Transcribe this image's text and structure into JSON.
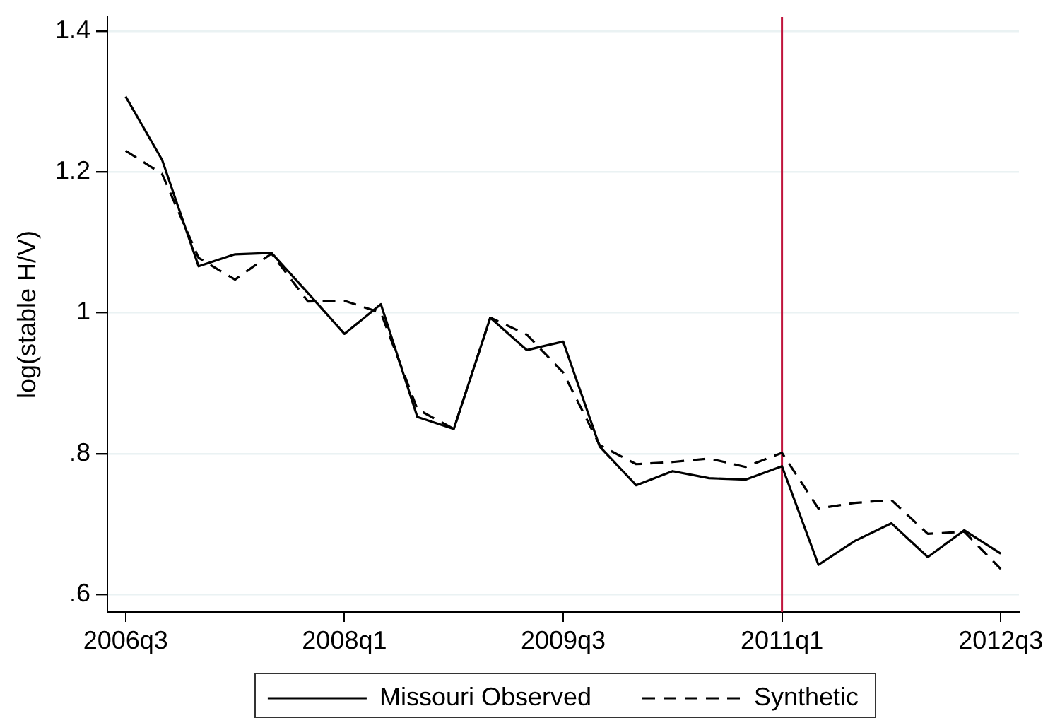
{
  "chart_data": {
    "type": "line",
    "ylabel": "log(stable H/V)",
    "categories": [
      "2006q3",
      null,
      null,
      null,
      null,
      null,
      "2008q1",
      null,
      null,
      null,
      null,
      null,
      "2009q3",
      null,
      null,
      null,
      null,
      null,
      "2011q1",
      null,
      null,
      null,
      null,
      null,
      "2012q3"
    ],
    "series": [
      {
        "name": "Missouri Observed",
        "color": "#000000",
        "line_style": "solid",
        "values": [
          1.307,
          1.217,
          1.066,
          1.083,
          1.085,
          1.028,
          0.97,
          1.012,
          0.852,
          0.835,
          0.993,
          0.947,
          0.959,
          0.81,
          0.755,
          0.775,
          0.765,
          0.763,
          0.782,
          0.642,
          0.676,
          0.701,
          0.653,
          0.691,
          0.658
        ]
      },
      {
        "name": "Synthetic",
        "color": "#000000",
        "line_style": "dashed",
        "values": [
          1.23,
          1.197,
          1.078,
          1.047,
          1.084,
          1.016,
          1.017,
          1.0,
          0.863,
          0.835,
          0.993,
          0.969,
          0.915,
          0.812,
          0.785,
          0.788,
          0.793,
          0.781,
          0.801,
          0.722,
          0.73,
          0.734,
          0.686,
          0.689,
          0.636
        ]
      }
    ],
    "ylim": [
      0.575,
      1.42
    ],
    "yticks": [
      {
        "value": 0.6,
        "label": ".6"
      },
      {
        "value": 0.8,
        "label": ".8"
      },
      1,
      1.2,
      1.4
    ],
    "ref_lines": [
      {
        "axis": "x",
        "value": "2011q1",
        "color": "#c0143c"
      }
    ],
    "grid": "y",
    "legend": "bottom"
  }
}
